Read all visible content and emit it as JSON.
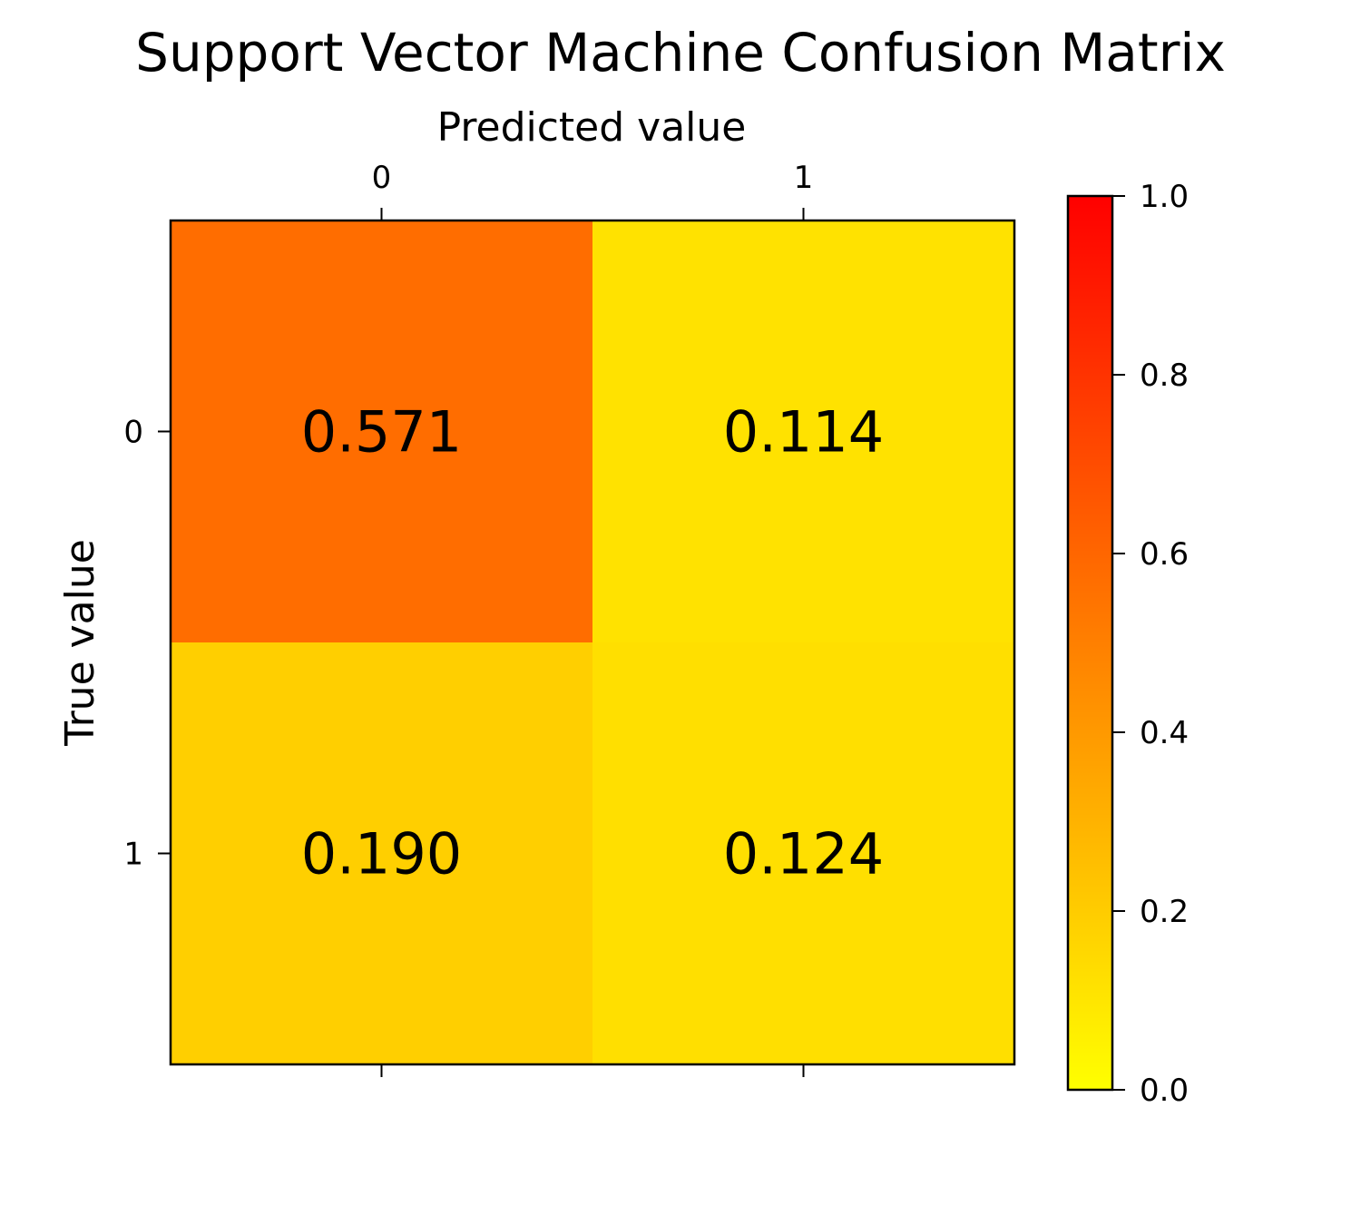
{
  "chart_data": {
    "type": "heatmap",
    "title": "Support Vector Machine Confusion Matrix",
    "xlabel": "Predicted value",
    "ylabel": "True value",
    "x_categories": [
      "0",
      "1"
    ],
    "y_categories": [
      "0",
      "1"
    ],
    "values": [
      [
        0.571,
        0.114
      ],
      [
        0.19,
        0.124
      ]
    ],
    "value_labels": [
      [
        "0.571",
        "0.114"
      ],
      [
        "0.190",
        "0.124"
      ]
    ],
    "x_axis_position": "top",
    "colormap": "autumn_r",
    "colorbar": {
      "range": [
        0.0,
        1.0
      ],
      "ticks": [
        0.0,
        0.2,
        0.4,
        0.6,
        0.8,
        1.0
      ],
      "tick_labels": [
        "0.0",
        "0.2",
        "0.4",
        "0.6",
        "0.8",
        "1.0"
      ],
      "color_low": "#ffff00",
      "color_high": "#ff0000"
    }
  }
}
